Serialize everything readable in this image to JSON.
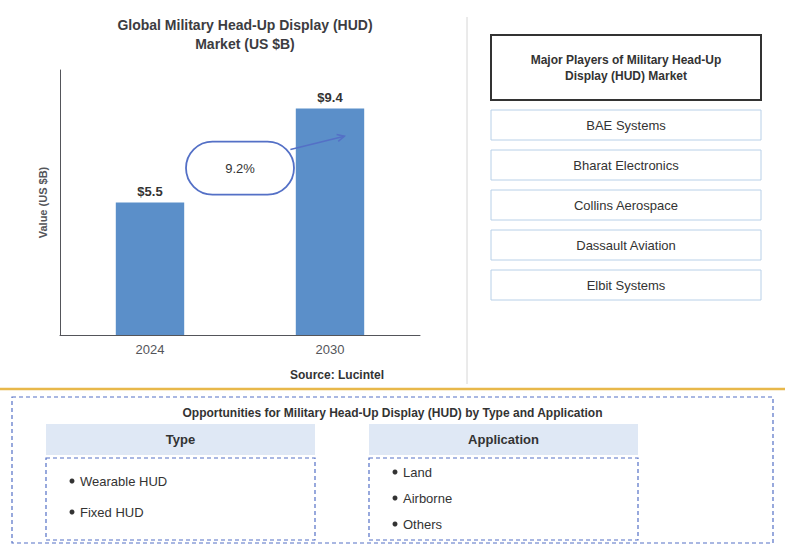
{
  "chart_data": {
    "type": "bar",
    "title": "Global Military Head-Up Display (HUD)\nMarket (US $B)",
    "categories": [
      "2024",
      "2030"
    ],
    "values": [
      5.5,
      9.4
    ],
    "value_labels": [
      "$5.5",
      "$9.4"
    ],
    "data_labels": true,
    "color": "#5b8fc9",
    "ylabel": "Value (US $B)",
    "ylim": [
      0,
      11
    ],
    "tick_labels": "x",
    "grid": false,
    "cagr_label": "9.2%",
    "source": "Source: Lucintel",
    "players_title": "Major Players of Military Head-Up\nDisplay (HUD) Market",
    "players": [
      "BAE Systems",
      "Bharat Electronics",
      "Collins Aerospace",
      "Dassault Aviation",
      "Elbit Systems"
    ],
    "opportunities_title": "Opportunities for Military Head-Up Display (HUD) by Type and Application",
    "type_header": "Type",
    "type_items": [
      "Wearable HUD",
      "Fixed HUD"
    ],
    "application_header": "Application",
    "application_items": [
      "Land",
      "Airborne",
      "Others"
    ]
  }
}
